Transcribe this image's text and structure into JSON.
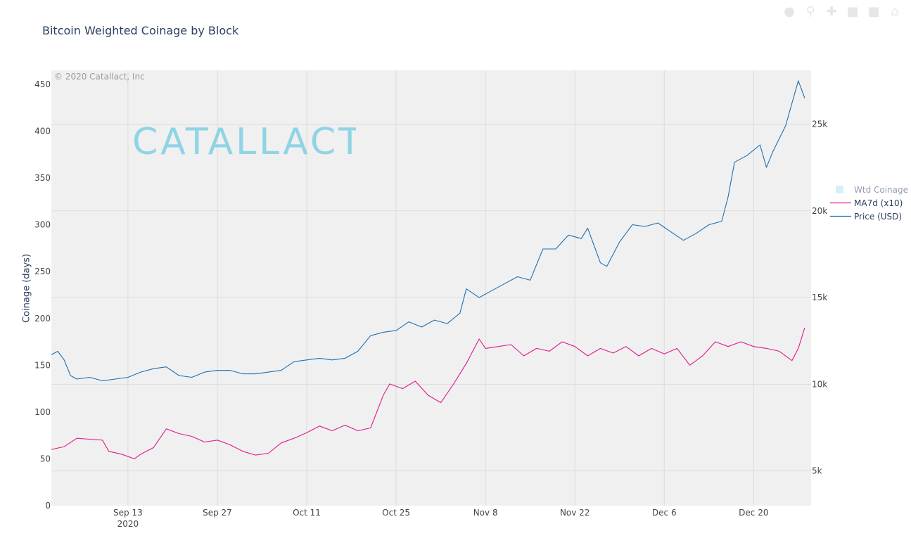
{
  "title": "Bitcoin Weighted Coinage by Block",
  "watermark": "© 2020 Catallact, Inc",
  "logo_text": "CATALLACT",
  "colors": {
    "plot_bg": "#f0f0f0",
    "grid": "#dcdcdc",
    "ma7d": "#e0198f",
    "price": "#1f6fb0",
    "wtd": "#aee3f7",
    "logo": "#7fd0e2",
    "axis_text": "#444444"
  },
  "modebar_icons": [
    "camera-icon",
    "zoom-icon",
    "pan-icon",
    "zoom-in-icon",
    "zoom-out-icon",
    "reset-icon"
  ],
  "chart_data": {
    "type": "line",
    "title": "Bitcoin Weighted Coinage by Block",
    "ylabel": "Coinage (days)",
    "y2label": "",
    "x_range": [
      "2020-09-01",
      "2020-12-29"
    ],
    "x_ticks": [
      {
        "date": "2020-09-13",
        "label": "Sep 13",
        "sub": "2020"
      },
      {
        "date": "2020-09-27",
        "label": "Sep 27",
        "sub": ""
      },
      {
        "date": "2020-10-11",
        "label": "Oct 11",
        "sub": ""
      },
      {
        "date": "2020-10-25",
        "label": "Oct 25",
        "sub": ""
      },
      {
        "date": "2020-11-08",
        "label": "Nov 8",
        "sub": ""
      },
      {
        "date": "2020-11-22",
        "label": "Nov 22",
        "sub": ""
      },
      {
        "date": "2020-12-06",
        "label": "Dec 6",
        "sub": ""
      },
      {
        "date": "2020-12-20",
        "label": "Dec 20",
        "sub": ""
      }
    ],
    "y_range": [
      0,
      465
    ],
    "y_ticks": [
      0,
      50,
      100,
      150,
      200,
      250,
      300,
      350,
      400,
      450
    ],
    "y2_range": [
      3000,
      28100
    ],
    "y2_ticks": [
      {
        "value": 5000,
        "label": "5k"
      },
      {
        "value": 10000,
        "label": "10k"
      },
      {
        "value": 15000,
        "label": "15k"
      },
      {
        "value": 20000,
        "label": "20k"
      },
      {
        "value": 25000,
        "label": "25k"
      }
    ],
    "legend": [
      "Wtd Coinage",
      "MA7d (x10)",
      "Price (USD)"
    ],
    "series": [
      {
        "name": "Wtd Coinage",
        "axis": "y",
        "visible": false,
        "x": [],
        "y": []
      },
      {
        "name": "MA7d (x10)",
        "axis": "y",
        "x": [
          "2020-09-01",
          "2020-09-03",
          "2020-09-05",
          "2020-09-07",
          "2020-09-09",
          "2020-09-10",
          "2020-09-12",
          "2020-09-14",
          "2020-09-15",
          "2020-09-17",
          "2020-09-19",
          "2020-09-21",
          "2020-09-23",
          "2020-09-25",
          "2020-09-27",
          "2020-09-29",
          "2020-10-01",
          "2020-10-03",
          "2020-10-05",
          "2020-10-07",
          "2020-10-09",
          "2020-10-11",
          "2020-10-13",
          "2020-10-15",
          "2020-10-17",
          "2020-10-19",
          "2020-10-21",
          "2020-10-23",
          "2020-10-24",
          "2020-10-26",
          "2020-10-28",
          "2020-10-30",
          "2020-11-01",
          "2020-11-03",
          "2020-11-05",
          "2020-11-07",
          "2020-11-08",
          "2020-11-10",
          "2020-11-12",
          "2020-11-14",
          "2020-11-16",
          "2020-11-18",
          "2020-11-20",
          "2020-11-22",
          "2020-11-24",
          "2020-11-26",
          "2020-11-28",
          "2020-11-30",
          "2020-12-02",
          "2020-12-04",
          "2020-12-06",
          "2020-12-08",
          "2020-12-10",
          "2020-12-12",
          "2020-12-14",
          "2020-12-16",
          "2020-12-18",
          "2020-12-20",
          "2020-12-22",
          "2020-12-24",
          "2020-12-26",
          "2020-12-27",
          "2020-12-28"
        ],
        "y": [
          60,
          63,
          72,
          71,
          70,
          58,
          55,
          50,
          55,
          62,
          82,
          77,
          74,
          68,
          70,
          65,
          58,
          54,
          56,
          67,
          72,
          78,
          85,
          80,
          86,
          80,
          83,
          118,
          130,
          125,
          133,
          118,
          110,
          130,
          152,
          178,
          168,
          170,
          172,
          160,
          168,
          165,
          175,
          170,
          160,
          168,
          163,
          170,
          160,
          168,
          162,
          168,
          150,
          160,
          175,
          170,
          175,
          170,
          168,
          165,
          155,
          168,
          190
        ]
      },
      {
        "name": "Price (USD)",
        "axis": "y2",
        "x": [
          "2020-09-01",
          "2020-09-02",
          "2020-09-03",
          "2020-09-04",
          "2020-09-05",
          "2020-09-07",
          "2020-09-09",
          "2020-09-11",
          "2020-09-13",
          "2020-09-15",
          "2020-09-17",
          "2020-09-19",
          "2020-09-21",
          "2020-09-23",
          "2020-09-25",
          "2020-09-27",
          "2020-09-29",
          "2020-10-01",
          "2020-10-03",
          "2020-10-05",
          "2020-10-07",
          "2020-10-09",
          "2020-10-11",
          "2020-10-13",
          "2020-10-15",
          "2020-10-17",
          "2020-10-19",
          "2020-10-21",
          "2020-10-23",
          "2020-10-25",
          "2020-10-27",
          "2020-10-29",
          "2020-10-31",
          "2020-11-02",
          "2020-11-04",
          "2020-11-05",
          "2020-11-07",
          "2020-11-09",
          "2020-11-11",
          "2020-11-13",
          "2020-11-15",
          "2020-11-17",
          "2020-11-19",
          "2020-11-21",
          "2020-11-23",
          "2020-11-24",
          "2020-11-26",
          "2020-11-27",
          "2020-11-29",
          "2020-12-01",
          "2020-12-03",
          "2020-12-05",
          "2020-12-07",
          "2020-12-09",
          "2020-12-11",
          "2020-12-13",
          "2020-12-15",
          "2020-12-16",
          "2020-12-17",
          "2020-12-19",
          "2020-12-21",
          "2020-12-22",
          "2020-12-23",
          "2020-12-25",
          "2020-12-27",
          "2020-12-28"
        ],
        "y": [
          11700,
          11900,
          11400,
          10500,
          10300,
          10400,
          10200,
          10300,
          10400,
          10700,
          10900,
          11000,
          10500,
          10400,
          10700,
          10800,
          10800,
          10600,
          10600,
          10700,
          10800,
          11300,
          11400,
          11500,
          11400,
          11500,
          11900,
          12800,
          13000,
          13100,
          13600,
          13300,
          13700,
          13500,
          14100,
          15500,
          15000,
          15400,
          15800,
          16200,
          16000,
          17800,
          17800,
          18600,
          18400,
          19000,
          17000,
          16800,
          18200,
          19200,
          19100,
          19300,
          18800,
          18300,
          18700,
          19200,
          19400,
          20800,
          22800,
          23200,
          23800,
          22500,
          23400,
          24900,
          27500,
          26500
        ]
      }
    ]
  }
}
